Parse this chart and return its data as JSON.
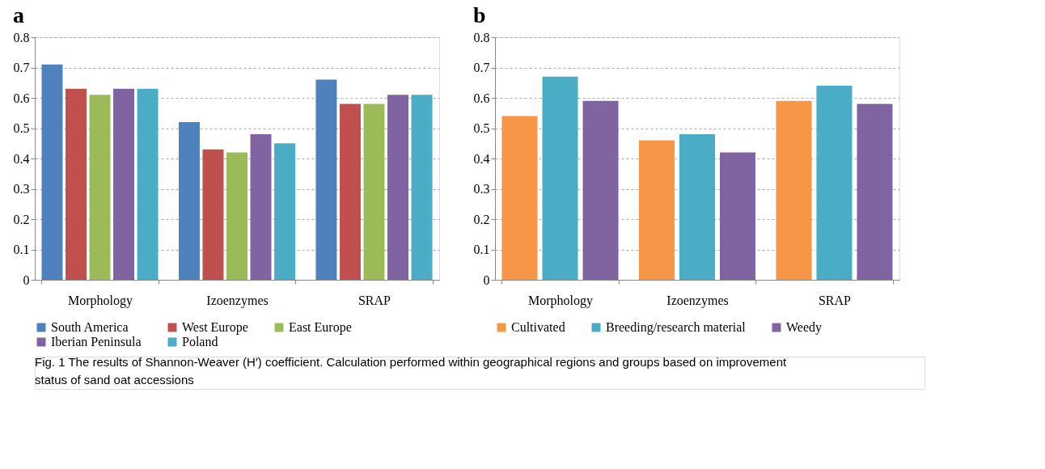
{
  "chart_data": [
    {
      "type": "bar",
      "title": "a",
      "categories": [
        "Morphology",
        "Izoenzymes",
        "SRAP"
      ],
      "series": [
        {
          "name": "South America",
          "color": "#4f81bd",
          "values": [
            0.71,
            0.52,
            0.66
          ]
        },
        {
          "name": "West Europe",
          "color": "#c0504d",
          "values": [
            0.63,
            0.43,
            0.58
          ]
        },
        {
          "name": "East Europe",
          "color": "#9bbb59",
          "values": [
            0.61,
            0.42,
            0.58
          ]
        },
        {
          "name": "Iberian Peninsula",
          "color": "#8064a2",
          "values": [
            0.63,
            0.48,
            0.61
          ]
        },
        {
          "name": "Poland",
          "color": "#4bacc6",
          "values": [
            0.63,
            0.45,
            0.61
          ]
        }
      ],
      "ylim": [
        0,
        0.8
      ],
      "yticks": [
        0,
        0.1,
        0.2,
        0.3,
        0.4,
        0.5,
        0.6,
        0.7,
        0.8
      ],
      "grid": "y",
      "legend": "bottom",
      "annotations": [
        "Fig. 1 The results of Shannon-Weaver (H′) coefficient. Calculation performed within geographical regions and groups based on improvement status of sand oat accessions"
      ]
    },
    {
      "type": "bar",
      "title": "b",
      "categories": [
        "Morphology",
        "Izoenzymes",
        "SRAP"
      ],
      "series": [
        {
          "name": "Cultivated",
          "color": "#f79646",
          "values": [
            0.54,
            0.46,
            0.59
          ]
        },
        {
          "name": "Breeding/research material",
          "color": "#4bacc6",
          "values": [
            0.67,
            0.48,
            0.64
          ]
        },
        {
          "name": "Weedy",
          "color": "#8064a2",
          "values": [
            0.59,
            0.42,
            0.58
          ]
        }
      ],
      "ylim": [
        0,
        0.8
      ],
      "yticks": [
        0,
        0.1,
        0.2,
        0.3,
        0.4,
        0.5,
        0.6,
        0.7,
        0.8
      ],
      "grid": "y",
      "legend": "bottom"
    }
  ]
}
